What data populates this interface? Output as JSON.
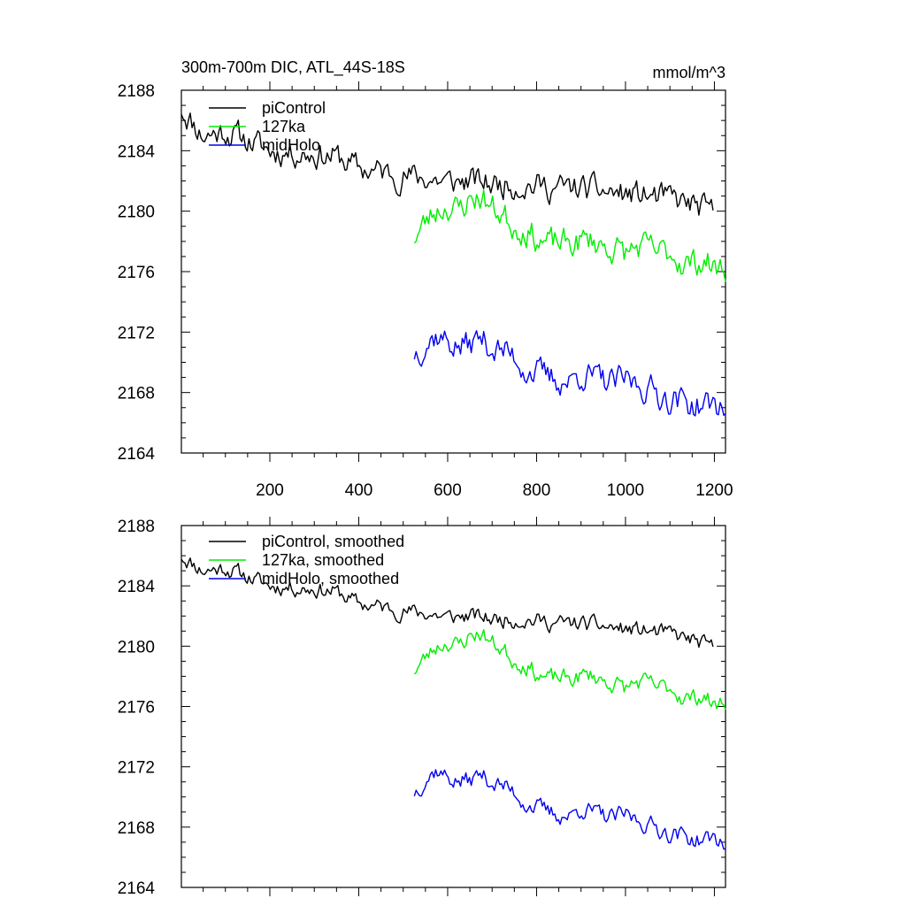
{
  "chart_data": [
    {
      "type": "line",
      "title": "300m-700m DIC, ATL_44S-18S",
      "units": "mmol/m^3",
      "xlim": [
        1,
        1225
      ],
      "ylim": [
        2164,
        2188
      ],
      "x_ticks": [
        200,
        400,
        600,
        800,
        1000,
        1200
      ],
      "y_ticks": [
        2164,
        2168,
        2172,
        2176,
        2180,
        2184,
        2188
      ],
      "show_x_labels": true,
      "legend_position": "top-left",
      "series": [
        {
          "name": "piControl",
          "color": "#000000",
          "x_start": 1,
          "x_end": 1200,
          "x": [
            1,
            50,
            100,
            150,
            200,
            250,
            300,
            350,
            400,
            450,
            500,
            550,
            600,
            650,
            700,
            750,
            800,
            850,
            900,
            950,
            1000,
            1050,
            1100,
            1150,
            1200
          ],
          "values": [
            2186.8,
            2185.0,
            2185.3,
            2184.7,
            2184.0,
            2183.9,
            2183.8,
            2183.6,
            2182.8,
            2182.6,
            2182.3,
            2182.2,
            2181.9,
            2182.0,
            2181.8,
            2181.8,
            2181.7,
            2181.5,
            2181.5,
            2181.3,
            2181.1,
            2181.0,
            2180.8,
            2180.4,
            2179.8
          ],
          "noise": 0.75,
          "seed": 11
        },
        {
          "name": "127ka",
          "color": "#00ee00",
          "x_start": 525,
          "x_end": 1225,
          "x": [
            525,
            550,
            575,
            600,
            625,
            650,
            675,
            700,
            725,
            750,
            775,
            800,
            825,
            850,
            875,
            900,
            925,
            950,
            975,
            1000,
            1025,
            1050,
            1075,
            1100,
            1125,
            1150,
            1175,
            1200,
            1225
          ],
          "values": [
            2178.3,
            2179.2,
            2180.1,
            2180.4,
            2180.0,
            2180.8,
            2181.0,
            2180.2,
            2179.8,
            2179.0,
            2178.8,
            2178.2,
            2177.8,
            2177.9,
            2177.8,
            2178.0,
            2178.1,
            2177.7,
            2177.5,
            2177.2,
            2177.6,
            2177.5,
            2177.2,
            2177.3,
            2176.7,
            2176.5,
            2176.8,
            2176.2,
            2176.3
          ],
          "noise": 0.8,
          "seed": 23
        },
        {
          "name": "midHolo",
          "color": "#0000ee",
          "x_start": 525,
          "x_end": 1225,
          "x": [
            525,
            550,
            575,
            600,
            625,
            650,
            675,
            700,
            725,
            750,
            775,
            800,
            825,
            850,
            875,
            900,
            925,
            950,
            975,
            1000,
            1025,
            1050,
            1075,
            1100,
            1125,
            1150,
            1175,
            1200,
            1225
          ],
          "values": [
            2170.6,
            2171.3,
            2171.8,
            2171.4,
            2171.0,
            2171.2,
            2171.6,
            2171.0,
            2170.7,
            2170.4,
            2169.6,
            2169.3,
            2169.0,
            2168.8,
            2168.7,
            2169.3,
            2169.0,
            2168.7,
            2168.6,
            2168.8,
            2168.6,
            2168.3,
            2167.9,
            2167.6,
            2167.5,
            2167.2,
            2167.1,
            2167.2,
            2167.0
          ],
          "noise": 0.8,
          "seed": 37
        }
      ]
    },
    {
      "type": "line",
      "xlim": [
        1,
        1225
      ],
      "ylim": [
        2164,
        2188
      ],
      "x_ticks": [
        200,
        400,
        600,
        800,
        1000,
        1200
      ],
      "y_ticks": [
        2164,
        2168,
        2172,
        2176,
        2180,
        2184,
        2188
      ],
      "show_x_labels": false,
      "legend_position": "top-left",
      "series": [
        {
          "name": "piControl, smoothed",
          "color": "#000000",
          "x_start": 1,
          "x_end": 1200,
          "x": [
            1,
            50,
            100,
            150,
            200,
            250,
            300,
            350,
            400,
            450,
            500,
            550,
            600,
            650,
            700,
            750,
            800,
            850,
            900,
            950,
            1000,
            1050,
            1100,
            1150,
            1200
          ],
          "values": [
            2186.0,
            2185.0,
            2185.2,
            2184.6,
            2184.0,
            2183.9,
            2183.8,
            2183.6,
            2182.8,
            2182.6,
            2182.3,
            2182.2,
            2181.9,
            2182.0,
            2181.8,
            2181.8,
            2181.7,
            2181.5,
            2181.5,
            2181.3,
            2181.1,
            2181.0,
            2180.8,
            2180.4,
            2179.8
          ],
          "noise": 0.45,
          "seed": 11
        },
        {
          "name": "127ka, smoothed",
          "color": "#00ee00",
          "x_start": 525,
          "x_end": 1225,
          "x": [
            525,
            550,
            575,
            600,
            625,
            650,
            675,
            700,
            725,
            750,
            775,
            800,
            825,
            850,
            875,
            900,
            925,
            950,
            975,
            1000,
            1025,
            1050,
            1075,
            1100,
            1125,
            1150,
            1175,
            1200,
            1225
          ],
          "values": [
            2178.4,
            2179.2,
            2180.0,
            2180.3,
            2180.0,
            2180.7,
            2180.9,
            2180.2,
            2179.8,
            2179.0,
            2178.8,
            2178.2,
            2177.8,
            2177.9,
            2177.8,
            2178.0,
            2178.1,
            2177.7,
            2177.5,
            2177.2,
            2177.6,
            2177.5,
            2177.2,
            2177.3,
            2176.7,
            2176.5,
            2176.8,
            2176.0,
            2176.4
          ],
          "noise": 0.5,
          "seed": 23
        },
        {
          "name": "midHolo, smoothed",
          "color": "#0000ee",
          "x_start": 525,
          "x_end": 1225,
          "x": [
            525,
            550,
            575,
            600,
            625,
            650,
            675,
            700,
            725,
            750,
            775,
            800,
            825,
            850,
            875,
            900,
            925,
            950,
            975,
            1000,
            1025,
            1050,
            1075,
            1100,
            1125,
            1150,
            1175,
            1200,
            1225
          ],
          "values": [
            2170.3,
            2171.2,
            2171.8,
            2171.3,
            2171.0,
            2171.1,
            2171.5,
            2171.0,
            2170.7,
            2170.3,
            2169.6,
            2169.3,
            2169.0,
            2168.8,
            2168.7,
            2169.3,
            2169.0,
            2168.7,
            2168.6,
            2168.8,
            2168.5,
            2168.2,
            2167.9,
            2167.6,
            2167.5,
            2167.2,
            2167.1,
            2167.3,
            2166.8
          ],
          "noise": 0.5,
          "seed": 37
        }
      ]
    }
  ]
}
